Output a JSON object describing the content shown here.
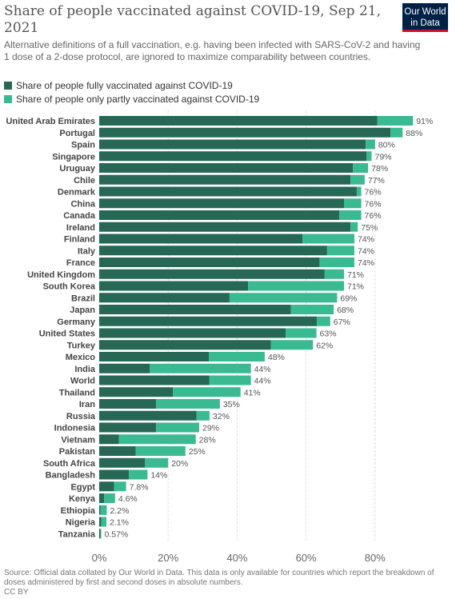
{
  "header": {
    "title": "Share of people vaccinated against COVID-19, Sep 21, 2021",
    "subtitle": "Alternative definitions of a full vaccination, e.g. having been infected with SARS-CoV-2 and having 1 dose of a 2-dose protocol, are ignored to maximize comparability between countries.",
    "logo_line1": "Our World",
    "logo_line2": "in Data"
  },
  "colors": {
    "fully": "#276755",
    "partly": "#3aba91",
    "grid": "#dddddd",
    "text": "#444444",
    "value_text": "#555555"
  },
  "chart_data": {
    "type": "bar",
    "orientation": "horizontal",
    "stacked": true,
    "title": "Share of people vaccinated against COVID-19, Sep 21, 2021",
    "xlim": [
      0,
      100
    ],
    "xticks": [
      0,
      20,
      40,
      60,
      80
    ],
    "xtick_labels": [
      "0%",
      "20%",
      "40%",
      "60%",
      "80%"
    ],
    "grid": true,
    "legend_position": "top-left",
    "categories": [
      "United Arab Emirates",
      "Portugal",
      "Spain",
      "Singapore",
      "Uruguay",
      "Chile",
      "Denmark",
      "China",
      "Canada",
      "Ireland",
      "Finland",
      "Italy",
      "France",
      "United Kingdom",
      "South Korea",
      "Brazil",
      "Japan",
      "Germany",
      "United States",
      "Turkey",
      "Mexico",
      "India",
      "World",
      "Thailand",
      "Iran",
      "Russia",
      "Indonesia",
      "Vietnam",
      "Pakistan",
      "South Africa",
      "Bangladesh",
      "Egypt",
      "Kenya",
      "Ethiopia",
      "Nigeria",
      "Tanzania"
    ],
    "series": [
      {
        "name": "Share of people fully vaccinated against COVID-19",
        "values": [
          80.7,
          84.5,
          77.3,
          77.5,
          73.6,
          72.9,
          74.7,
          71.0,
          69.6,
          72.9,
          59.0,
          66.1,
          63.9,
          65.4,
          43.2,
          37.8,
          55.6,
          63.1,
          54.1,
          49.8,
          31.8,
          14.7,
          31.9,
          21.4,
          16.5,
          28.2,
          16.5,
          5.7,
          10.6,
          13.3,
          8.6,
          4.3,
          1.4,
          0.4,
          0.6,
          0.4
        ]
      },
      {
        "name": "Share of people only partly vaccinated against COVID-19",
        "values": [
          10.3,
          3.5,
          2.7,
          1.5,
          4.4,
          4.1,
          1.3,
          5.0,
          6.4,
          2.1,
          15.0,
          7.9,
          10.1,
          5.6,
          27.8,
          31.2,
          12.4,
          3.9,
          8.9,
          12.2,
          16.2,
          29.3,
          12.1,
          19.6,
          18.5,
          3.8,
          12.5,
          22.3,
          14.4,
          6.7,
          5.4,
          3.5,
          3.2,
          1.8,
          1.5,
          0.17
        ]
      }
    ],
    "value_labels": [
      "91%",
      "88%",
      "80%",
      "79%",
      "78%",
      "77%",
      "76%",
      "76%",
      "76%",
      "75%",
      "74%",
      "74%",
      "74%",
      "71%",
      "71%",
      "69%",
      "68%",
      "67%",
      "63%",
      "62%",
      "48%",
      "44%",
      "44%",
      "41%",
      "35%",
      "32%",
      "29%",
      "28%",
      "25%",
      "20%",
      "14%",
      "7.8%",
      "4.6%",
      "2.2%",
      "2.1%",
      "0.57%"
    ]
  },
  "footer": {
    "source": "Source: Official data collated by Our World in Data. This data is only available for countries which report the breakdown of doses administered by first and second doses in absolute numbers.",
    "license": "CC BY"
  }
}
